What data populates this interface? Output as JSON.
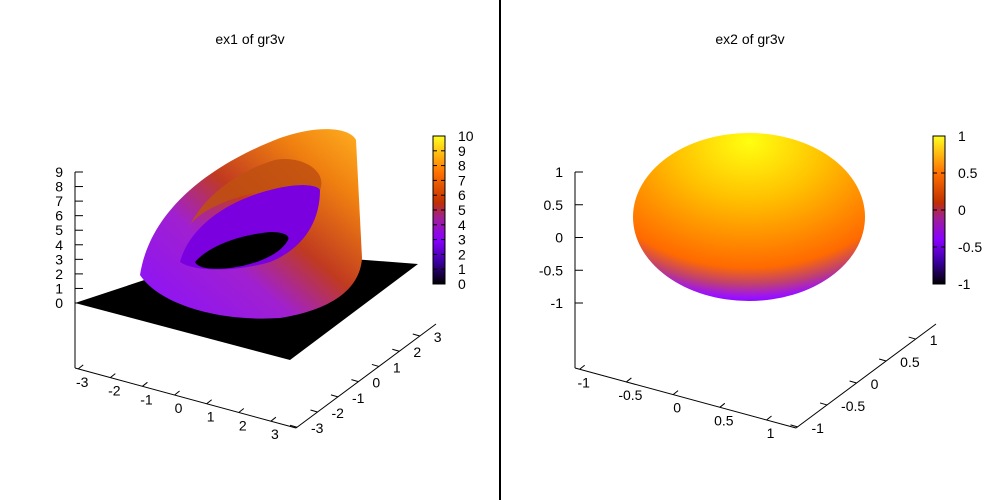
{
  "panels": [
    {
      "title": "ex1 of gr3v",
      "z_ticks": [
        "0",
        "1",
        "2",
        "3",
        "4",
        "5",
        "6",
        "7",
        "8",
        "9"
      ],
      "x_ticks": [
        "-3",
        "-2",
        "-1",
        "0",
        "1",
        "2",
        "3"
      ],
      "y_ticks": [
        "-3",
        "-2",
        "-1",
        "0",
        "1",
        "2",
        "3"
      ],
      "colorbar_ticks": [
        "0",
        "1",
        "2",
        "3",
        "4",
        "5",
        "6",
        "7",
        "8",
        "9",
        "10"
      ]
    },
    {
      "title": "ex2 of gr3v",
      "z_ticks": [
        "-1",
        "-0.5",
        "0",
        "0.5",
        "1"
      ],
      "x_ticks": [
        "-1",
        "-0.5",
        "0",
        "0.5",
        "1"
      ],
      "y_ticks": [
        "-1",
        "-0.5",
        "0",
        "0.5",
        "1"
      ],
      "colorbar_ticks": [
        "-1",
        "-0.5",
        "0",
        "0.5",
        "1"
      ]
    }
  ],
  "chart_data": [
    {
      "type": "surface3d",
      "title": "ex1 of gr3v",
      "description_of_shape": "tilted ring/torus-like voxel surface above a flat black base plane",
      "xlim": [
        -3,
        3
      ],
      "ylim": [
        -3,
        3
      ],
      "zlim": [
        0,
        9
      ],
      "color_range": [
        0,
        10
      ],
      "colormap": [
        "#000000",
        "#5500ff",
        "#a500ff",
        "#c03000",
        "#ff8000",
        "#ffff00"
      ],
      "colorbar_ticks": [
        0,
        1,
        2,
        3,
        4,
        5,
        6,
        7,
        8,
        9,
        10
      ]
    },
    {
      "type": "surface3d",
      "title": "ex2 of gr3v",
      "description_of_shape": "ellipsoid / sphere",
      "xlim": [
        -1,
        1
      ],
      "ylim": [
        -1,
        1
      ],
      "zlim": [
        -1,
        1
      ],
      "color_range": [
        -1,
        1
      ],
      "colormap": [
        "#000000",
        "#5500ff",
        "#a500ff",
        "#c03000",
        "#ff8000",
        "#ffff00"
      ],
      "colorbar_ticks": [
        -1,
        -0.5,
        0,
        0.5,
        1
      ]
    }
  ]
}
